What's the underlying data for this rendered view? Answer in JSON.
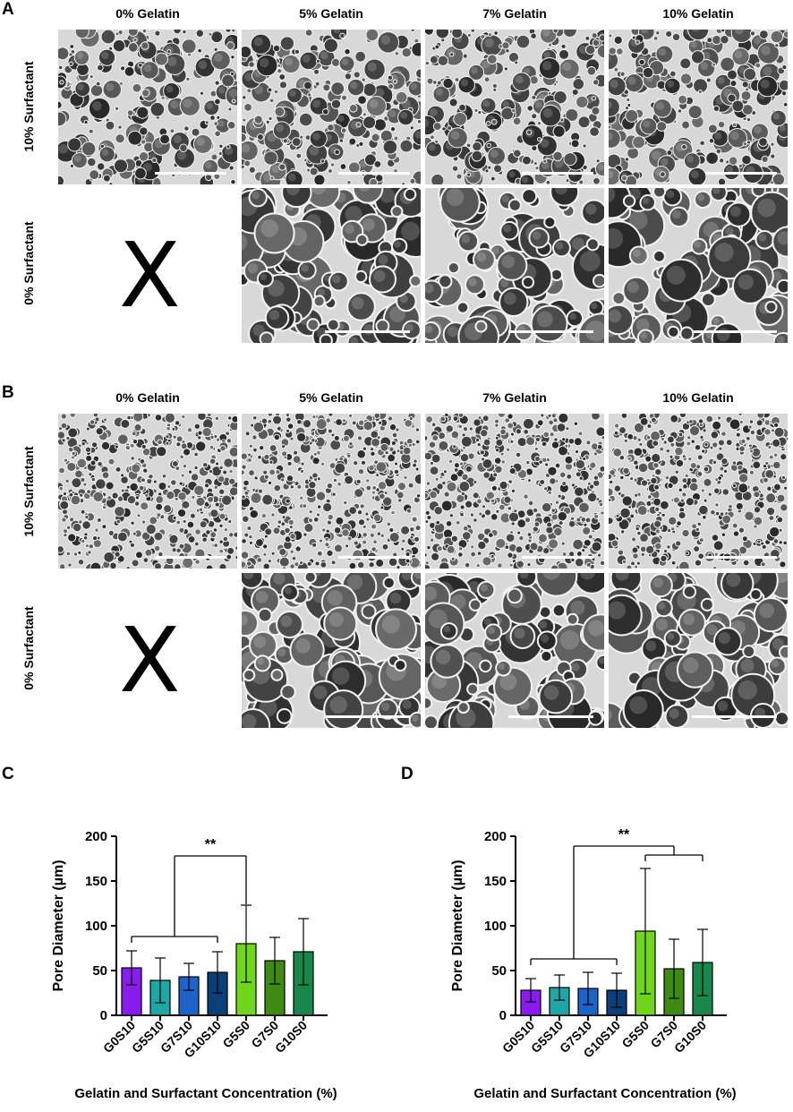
{
  "panels": {
    "A": {
      "letter": "A"
    },
    "B": {
      "letter": "B"
    },
    "C": {
      "letter": "C"
    },
    "D": {
      "letter": "D"
    }
  },
  "column_headers": [
    "0% Gelatin",
    "5% Gelatin",
    "7% Gelatin",
    "10% Gelatin"
  ],
  "row_headers": [
    "10% Surfactant",
    "0% Surfactant"
  ],
  "missing_marker": "X",
  "chart_data": [
    {
      "type": "bar",
      "panel": "C",
      "categories": [
        "G0S10",
        "G5S10",
        "G7S10",
        "G10S10",
        "G5S0",
        "G7S0",
        "G10S0"
      ],
      "values": [
        53,
        39,
        43,
        48,
        80,
        61,
        71
      ],
      "errors": [
        19,
        25,
        15,
        23,
        43,
        26,
        37
      ],
      "colors": [
        "#8b1cf0",
        "#1fa6a6",
        "#1e63c8",
        "#0b3f7a",
        "#6fd61c",
        "#3e8a12",
        "#17874a"
      ],
      "ylabel": "Pore Diameter (µm)",
      "xlabel": "Gelatin and Surfactant Concentration (%)",
      "ylim": [
        0,
        200
      ],
      "yticks": [
        0,
        50,
        100,
        150,
        200
      ],
      "significance": "**"
    },
    {
      "type": "bar",
      "panel": "D",
      "categories": [
        "G0S10",
        "G5S10",
        "G7S10",
        "G10S10",
        "G5S0",
        "G7S0",
        "G10S0"
      ],
      "values": [
        28,
        31,
        30,
        28,
        94,
        52,
        59
      ],
      "errors": [
        13,
        14,
        18,
        19,
        70,
        33,
        37
      ],
      "colors": [
        "#8b1cf0",
        "#1fa6a6",
        "#1e63c8",
        "#0b3f7a",
        "#6fd61c",
        "#3e8a12",
        "#17874a"
      ],
      "ylabel": "Pore Diameter (µm)",
      "xlabel": "Gelatin and Surfactant Concentration (%)",
      "ylim": [
        0,
        200
      ],
      "yticks": [
        0,
        50,
        100,
        150,
        200
      ],
      "significance": "**"
    }
  ]
}
